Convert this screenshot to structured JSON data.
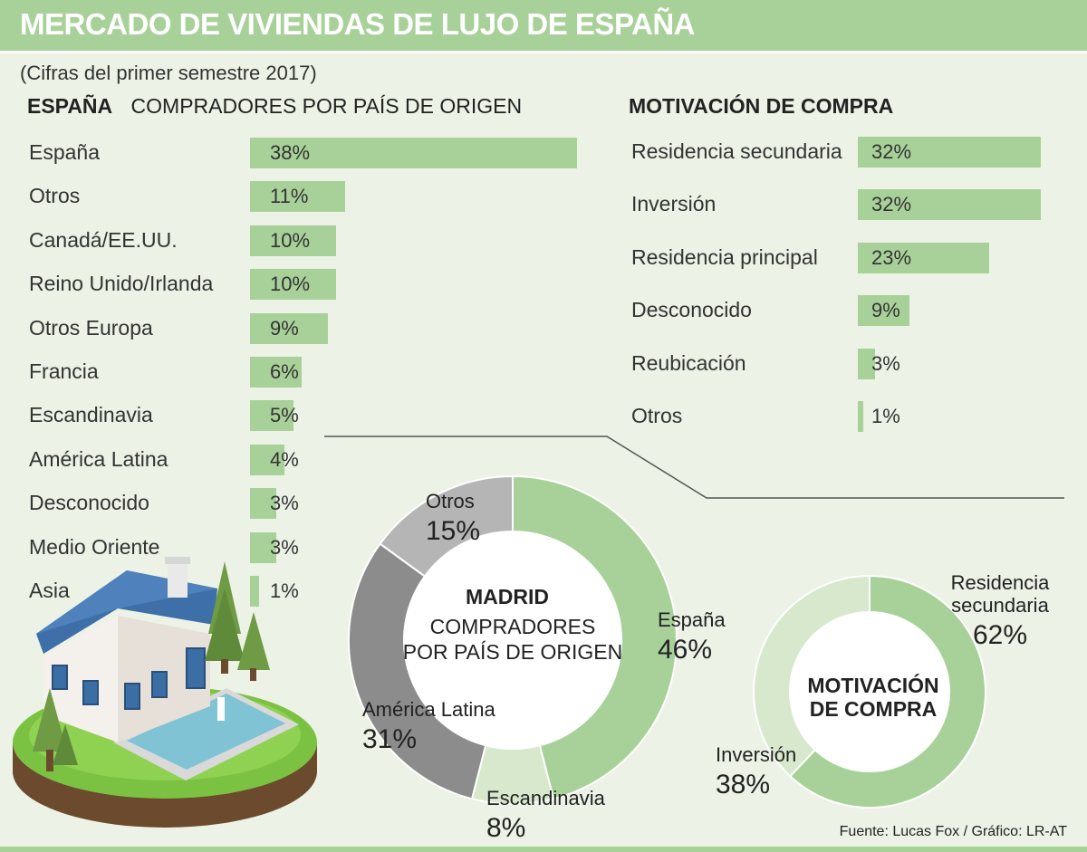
{
  "header": {
    "title": "MERCADO DE VIVIENDAS DE LUJO DE ESPAÑA",
    "subtitle": "(Cifras del primer semestre 2017)"
  },
  "spain_section": {
    "region": "ESPAÑA",
    "heading": "COMPRADORES POR PAÍS DE ORIGEN"
  },
  "motivation_section": {
    "heading": "MOTIVACIÓN DE COMPRA"
  },
  "madrid_center": {
    "region": "MADRID",
    "line1": "COMPRADORES",
    "line2": "POR PAÍS DE ORIGEN"
  },
  "madrid_motivation_center": {
    "line1": "MOTIVACIÓN",
    "line2": "DE COMPRA"
  },
  "source": "Fuente:  Lucas Fox / Gráfico: LR-AT",
  "colors": {
    "light_green": "#a8d199",
    "pale_green": "#d7e8cd",
    "dark_gray": "#8c8c8c",
    "light_gray": "#b5b5b5",
    "background": "#ecf2e6"
  },
  "chart_data": [
    {
      "type": "bar",
      "orientation": "horizontal",
      "title": "ESPAÑA — COMPRADORES POR PAÍS DE ORIGEN",
      "categories": [
        "España",
        "Otros",
        "Canadá/EE.UU.",
        "Reino Unido/Irlanda",
        "Otros Europa",
        "Francia",
        "Escandinavia",
        "América Latina",
        "Desconocido",
        "Medio Oriente",
        "Asia"
      ],
      "values": [
        38,
        11,
        10,
        10,
        9,
        6,
        5,
        4,
        3,
        3,
        1
      ],
      "labels": [
        "38%",
        "11%",
        "10%",
        "10%",
        "9%",
        "6%",
        "5%",
        "4%",
        "3%",
        "3%",
        "1%"
      ],
      "unit": "%"
    },
    {
      "type": "bar",
      "orientation": "horizontal",
      "title": "MOTIVACIÓN DE COMPRA",
      "categories": [
        "Residencia secundaria",
        "Inversión",
        "Residencia principal",
        "Desconocido",
        "Reubicación",
        "Otros"
      ],
      "values": [
        32,
        32,
        23,
        9,
        3,
        1
      ],
      "labels": [
        "32%",
        "32%",
        "23%",
        "9%",
        "3%",
        "1%"
      ],
      "unit": "%"
    },
    {
      "type": "pie",
      "subtype": "donut",
      "title": "MADRID — COMPRADORES POR PAÍS DE ORIGEN",
      "categories": [
        "España",
        "Escandinavia",
        "América Latina",
        "Otros"
      ],
      "values": [
        46,
        8,
        31,
        15
      ],
      "labels": [
        "46%",
        "8%",
        "31%",
        "15%"
      ],
      "colors": [
        "#a8d199",
        "#d7e8cd",
        "#8c8c8c",
        "#b5b5b5"
      ]
    },
    {
      "type": "pie",
      "subtype": "donut",
      "title": "MADRID — MOTIVACIÓN DE COMPRA",
      "categories": [
        "Residencia secundaria",
        "Inversión"
      ],
      "values": [
        62,
        38
      ],
      "labels": [
        "62%",
        "38%"
      ],
      "colors": [
        "#a8d199",
        "#d7e8cd"
      ]
    }
  ]
}
